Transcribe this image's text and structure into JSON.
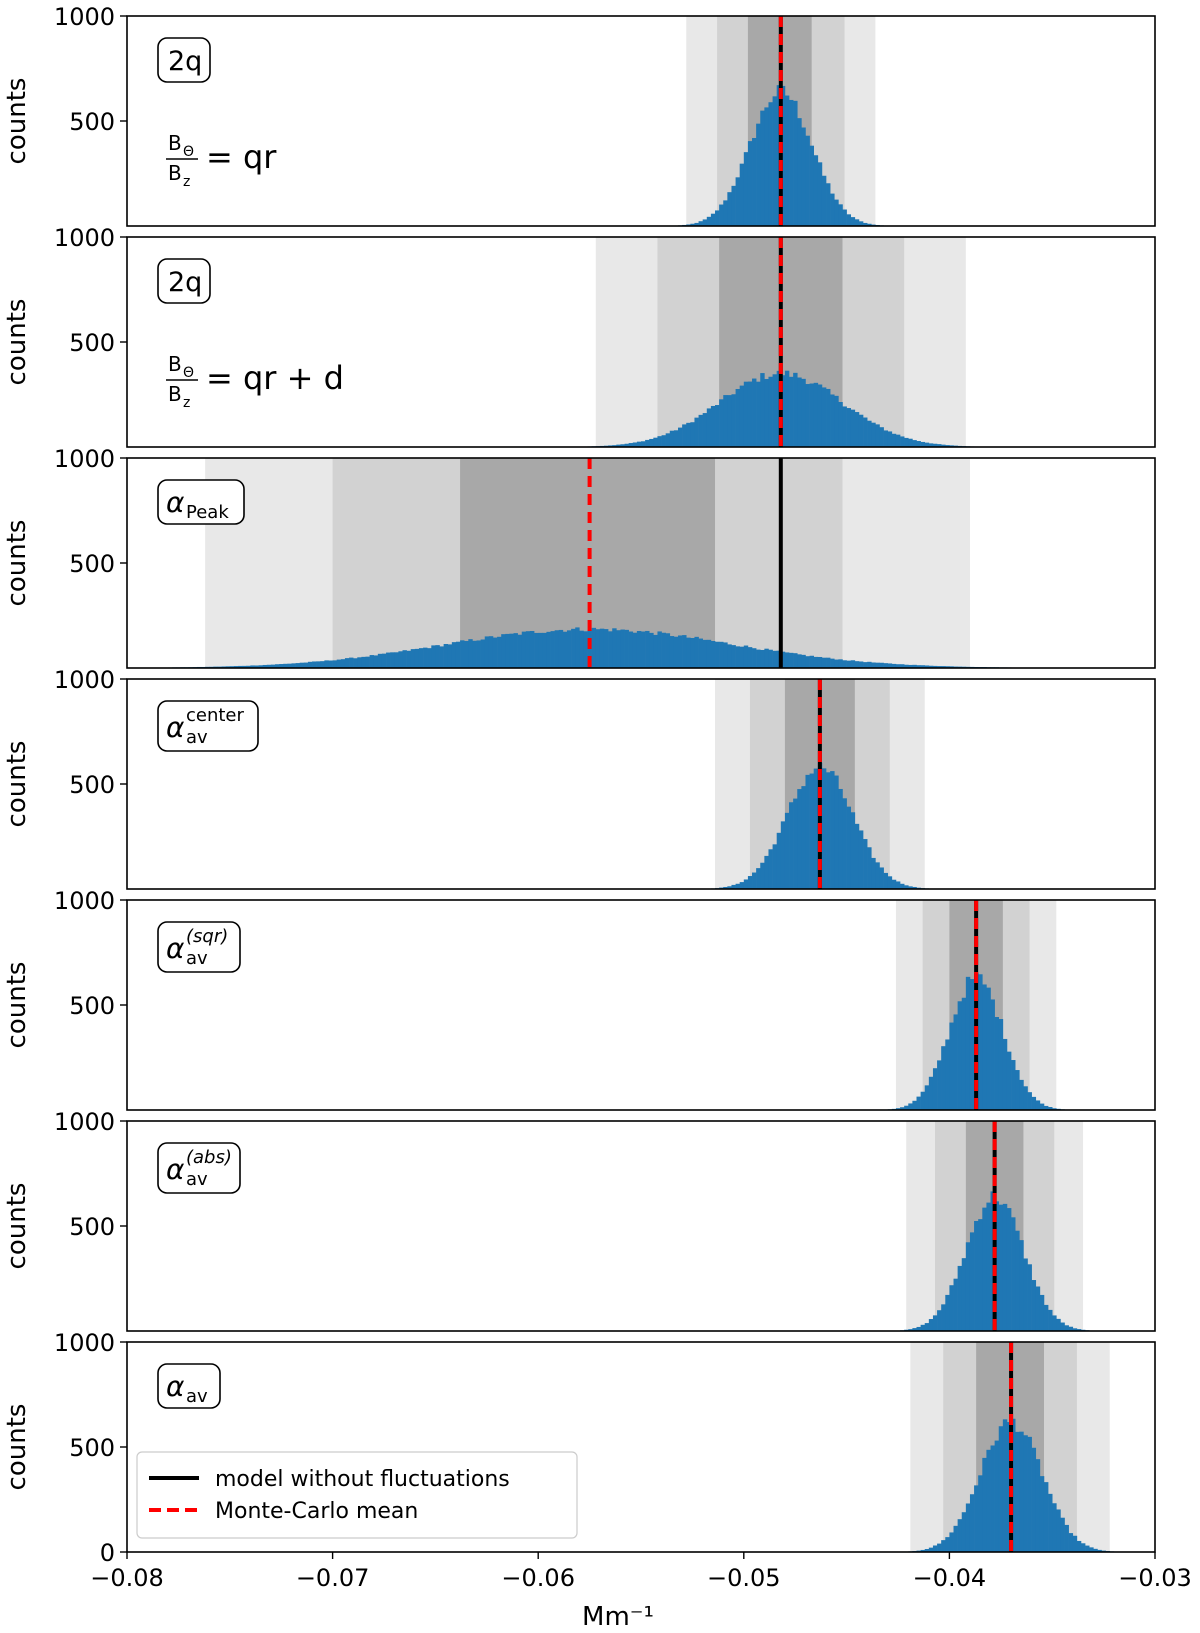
{
  "chart_data": {
    "type": "histogram",
    "xlabel": "Mm⁻¹",
    "ylabel": "counts",
    "xlim": [
      -0.08,
      -0.03
    ],
    "ylim": [
      0,
      1000
    ],
    "x_ticks": [
      -0.08,
      -0.07,
      -0.06,
      -0.05,
      -0.04,
      -0.03
    ],
    "x_tick_labels": [
      "−0.08",
      "−0.07",
      "−0.06",
      "−0.05",
      "−0.04",
      "−0.03"
    ],
    "y_ticks": [
      0,
      500,
      1000
    ],
    "y_tick_labels": [
      "0",
      "500",
      "1000"
    ],
    "bin_width": 0.0002,
    "colors": {
      "histogram": "#1f77b4",
      "model_line": "#000000",
      "mc_mean_line": "#ff0000",
      "band_1sigma": "#a8a8a8",
      "band_2sigma": "#d2d2d2",
      "band_3sigma": "#e8e8e8"
    },
    "legend": {
      "location": "lower-left",
      "entries": [
        {
          "label": "model without fluctuations",
          "style": "solid-black"
        },
        {
          "label": "Monte-Carlo mean",
          "style": "dashed-red"
        }
      ]
    },
    "panels": [
      {
        "label": "2q",
        "equation": {
          "num": "B",
          "num_sub": "Θ",
          "den": "B",
          "den_sub": "z",
          "rhs": "= qr"
        },
        "model": -0.0482,
        "mc_mean": -0.0482,
        "peak": 640,
        "sigma": 0.0015,
        "bands": [
          [
            -0.0498,
            -0.0467
          ],
          [
            -0.0513,
            -0.0451
          ],
          [
            -0.0528,
            -0.0436
          ]
        ]
      },
      {
        "label": "2q",
        "equation": {
          "num": "B",
          "num_sub": "Θ",
          "den": "B",
          "den_sub": "z",
          "rhs": "= qr + d"
        },
        "model": -0.0482,
        "mc_mean": -0.0482,
        "peak": 350,
        "sigma": 0.003,
        "bands": [
          [
            -0.0512,
            -0.0452
          ],
          [
            -0.0542,
            -0.0422
          ],
          [
            -0.0572,
            -0.0392
          ]
        ]
      },
      {
        "label": "α",
        "label_sub": "Peak",
        "model": -0.0482,
        "mc_mean": -0.0575,
        "peak": 185,
        "sigma": 0.007,
        "bands": [
          [
            -0.0638,
            -0.0514
          ],
          [
            -0.07,
            -0.0452
          ],
          [
            -0.0762,
            -0.039
          ]
        ]
      },
      {
        "label": "α",
        "label_sub": "av",
        "label_sup": "center",
        "model": -0.0463,
        "mc_mean": -0.0463,
        "peak": 580,
        "sigma": 0.0016,
        "bands": [
          [
            -0.048,
            -0.0446
          ],
          [
            -0.0497,
            -0.0429
          ],
          [
            -0.0514,
            -0.0412
          ]
        ]
      },
      {
        "label": "α",
        "label_sub": "av",
        "label_sup": "(sqr)",
        "model": -0.0387,
        "mc_mean": -0.0387,
        "peak": 630,
        "sigma": 0.0013,
        "bands": [
          [
            -0.04,
            -0.0374
          ],
          [
            -0.0413,
            -0.0361
          ],
          [
            -0.0426,
            -0.0348
          ]
        ]
      },
      {
        "label": "α",
        "label_sub": "av",
        "label_sup": "(abs)",
        "model": -0.0378,
        "mc_mean": -0.0378,
        "peak": 640,
        "sigma": 0.0014,
        "bands": [
          [
            -0.0392,
            -0.0364
          ],
          [
            -0.0407,
            -0.0349
          ],
          [
            -0.0421,
            -0.0335
          ]
        ]
      },
      {
        "label": "α",
        "label_sub": "av",
        "model": -0.037,
        "mc_mean": -0.037,
        "peak": 620,
        "sigma": 0.0015,
        "bands": [
          [
            -0.0387,
            -0.0354
          ],
          [
            -0.0403,
            -0.0338
          ],
          [
            -0.0419,
            -0.0322
          ]
        ]
      }
    ]
  }
}
